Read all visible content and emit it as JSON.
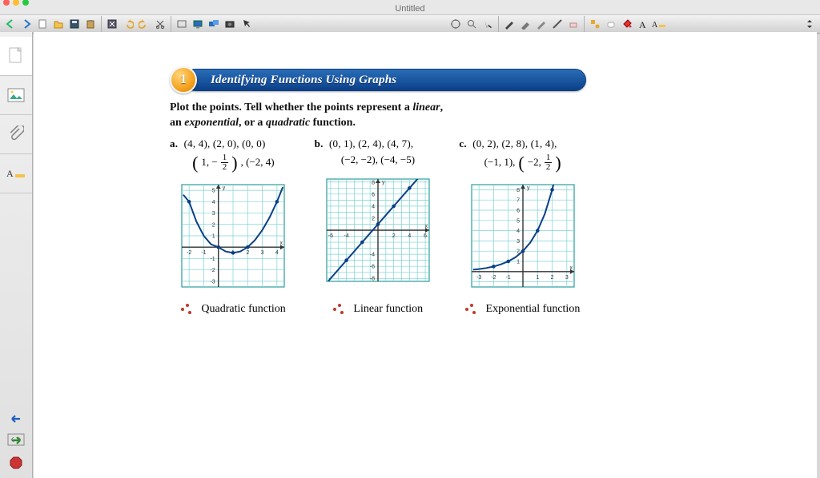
{
  "window": {
    "title": "Untitled"
  },
  "section": {
    "badge_number": "1",
    "title": "Identifying Functions Using Graphs",
    "pill_gradient_top": "#2a6db8",
    "pill_gradient_bottom": "#0b3f88",
    "badge_gradient": [
      "#ffd57a",
      "#f29a12",
      "#c96e04"
    ]
  },
  "instructions": {
    "line1_prefix": "Plot the points. Tell whether the points represent a ",
    "line1_em1": "linear",
    "line1_mid": ",",
    "line2_prefix": "an ",
    "line2_em1": "exponential",
    "line2_mid": ", or a ",
    "line2_em2": "quadratic",
    "line2_suffix": " function."
  },
  "problems": [
    {
      "label": "a.",
      "points_line1": "(4, 4), (2, 0), (0, 0)",
      "points_line2_left_text": "1, −",
      "points_line2_frac_num": "1",
      "points_line2_frac_den": "2",
      "points_line2_right_text": ", (−2, 4)",
      "answer": "Quadratic function",
      "graph": {
        "type": "function-plot",
        "grid_color": "#7fd3d3",
        "axis_color": "#333333",
        "curve_color": "#0b3f88",
        "curve_width": 2,
        "background": "#ffffff",
        "xlim": [
          -2.5,
          4.5
        ],
        "ylim": [
          -3.5,
          5.5
        ],
        "x_ticks": [
          -2,
          -1,
          1,
          2,
          3,
          4
        ],
        "y_ticks": [
          -3,
          -2,
          -1,
          1,
          2,
          3,
          4,
          5
        ],
        "x_axis_label": "x",
        "y_axis_label": "y",
        "curve_samples": [
          [
            -2.4,
            4.61
          ],
          [
            -2,
            4
          ],
          [
            -1.5,
            2.25
          ],
          [
            -1,
            1
          ],
          [
            -0.5,
            0.25
          ],
          [
            0,
            0
          ],
          [
            0.5,
            -0.375
          ],
          [
            1,
            -0.5
          ],
          [
            1.5,
            -0.375
          ],
          [
            2,
            0
          ],
          [
            2.5,
            0.625
          ],
          [
            3,
            1.5
          ],
          [
            3.5,
            2.625
          ],
          [
            4,
            4
          ],
          [
            4.4,
            5.28
          ]
        ],
        "marker_points": [
          [
            -2,
            4
          ],
          [
            0,
            0
          ],
          [
            1,
            -0.5
          ],
          [
            2,
            0
          ],
          [
            4,
            4
          ]
        ],
        "marker_color": "#0b3f88"
      }
    },
    {
      "label": "b.",
      "points_line1": "(0, 1), (2, 4), (4, 7),",
      "points_line2_plain": "(−2, −2), (−4, −5)",
      "answer": "Linear function",
      "graph": {
        "type": "function-plot",
        "grid_color": "#7fd3d3",
        "axis_color": "#333333",
        "curve_color": "#0b3f88",
        "curve_width": 2,
        "background": "#ffffff",
        "xlim": [
          -6.5,
          6.5
        ],
        "ylim": [
          -8.5,
          8.5
        ],
        "x_ticks": [
          -6,
          -4,
          2,
          4,
          6
        ],
        "y_ticks": [
          -8,
          -6,
          -4,
          2,
          4,
          6,
          8
        ],
        "x_axis_label": "x",
        "y_axis_label": "y",
        "curve_samples": [
          [
            -6.3,
            -8.45
          ],
          [
            6.3,
            10.45
          ]
        ],
        "marker_points": [
          [
            -4,
            -5
          ],
          [
            -2,
            -2
          ],
          [
            0,
            1
          ],
          [
            2,
            4
          ],
          [
            4,
            7
          ]
        ],
        "marker_color": "#0b3f88"
      }
    },
    {
      "label": "c.",
      "points_line1": "(0, 2), (2, 8), (1, 4),",
      "points_line2_left_text": "(−1, 1), ",
      "points_line2_paren_open": true,
      "points_line2_inner_text": "−2, ",
      "points_line2_frac_num": "1",
      "points_line2_frac_den": "2",
      "points_line2_paren_close": true,
      "answer": "Exponential function",
      "graph": {
        "type": "function-plot",
        "grid_color": "#7fd3d3",
        "axis_color": "#333333",
        "curve_color": "#0b3f88",
        "curve_width": 2,
        "background": "#ffffff",
        "xlim": [
          -3.5,
          3.5
        ],
        "ylim": [
          -1.5,
          8.5
        ],
        "x_ticks": [
          -3,
          -2,
          -1,
          1,
          2,
          3
        ],
        "y_ticks": [
          1,
          2,
          3,
          4,
          5,
          6,
          7,
          8
        ],
        "x_axis_label": "x",
        "y_axis_label": "y",
        "curve_samples": [
          [
            -3.4,
            0.19
          ],
          [
            -3,
            0.25
          ],
          [
            -2.5,
            0.35
          ],
          [
            -2,
            0.5
          ],
          [
            -1.5,
            0.71
          ],
          [
            -1,
            1
          ],
          [
            -0.5,
            1.41
          ],
          [
            0,
            2
          ],
          [
            0.5,
            2.83
          ],
          [
            1,
            4
          ],
          [
            1.5,
            5.66
          ],
          [
            2,
            8
          ],
          [
            2.2,
            9.19
          ]
        ],
        "marker_points": [
          [
            -2,
            0.5
          ],
          [
            -1,
            1
          ],
          [
            0,
            2
          ],
          [
            1,
            4
          ],
          [
            2,
            8
          ]
        ],
        "marker_color": "#0b3f88"
      }
    }
  ],
  "answers_bullet_color": "#c0392b",
  "toolbar_icons": [
    "back-arrow",
    "forward-arrow",
    "new-doc",
    "open-folder",
    "save-disk",
    "paste-clipboard",
    "toolbox",
    "undo",
    "redo",
    "cut-scissors",
    "screen-rect",
    "monitor",
    "screens",
    "camera",
    "pointer",
    "hand-grabber"
  ],
  "toolbar_mid_icons": [
    "zoom-target",
    "magnifier",
    "cursor",
    "pen",
    "highlighter",
    "pen-alt",
    "line-tool",
    "eraser",
    "shape-pick",
    "eraser2",
    "paint-bucket",
    "text-a",
    "text-style"
  ],
  "sidebar_items": [
    {
      "name": "blank-page-icon",
      "selected": true
    },
    {
      "name": "image-icon",
      "selected": false
    },
    {
      "name": "attachment-icon",
      "selected": false
    },
    {
      "name": "text-style-icon",
      "selected": false
    }
  ],
  "sidebar_mid": [
    {
      "name": "fit-width-icon"
    }
  ],
  "sidebar_bottom": [
    {
      "name": "left-arrow-icon",
      "color": "#1f5fbf"
    },
    {
      "name": "right-arrow-icon",
      "color": "#2e8b2e"
    },
    {
      "name": "stop-icon",
      "color": "#cc3333"
    }
  ]
}
